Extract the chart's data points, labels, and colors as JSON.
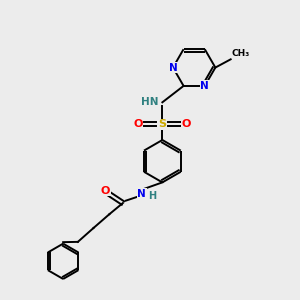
{
  "background_color": "#ececec",
  "bond_color": "#000000",
  "atom_colors": {
    "N": "#0000ee",
    "O": "#ff0000",
    "S": "#ccaa00",
    "H": "#2f8080",
    "C": "#000000"
  },
  "figsize": [
    3.0,
    3.0
  ],
  "dpi": 100,
  "lw": 1.4
}
